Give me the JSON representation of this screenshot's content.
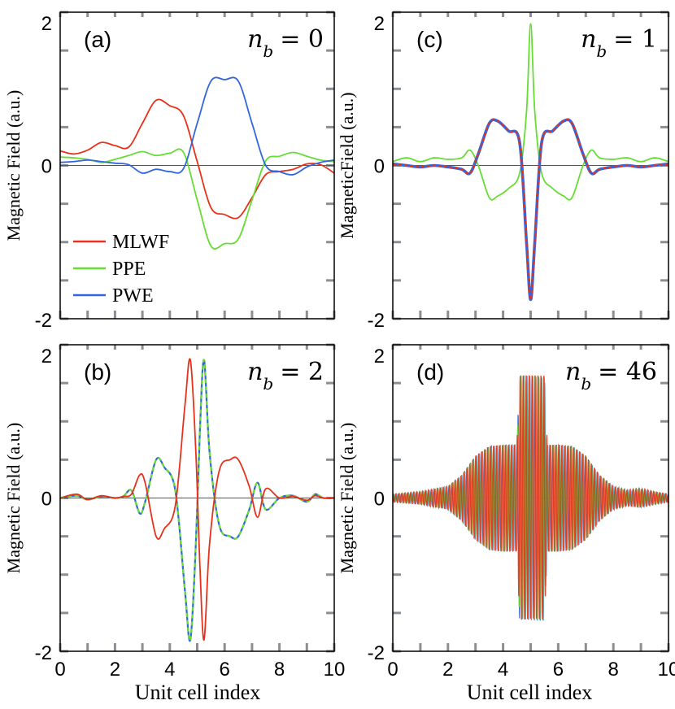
{
  "colors": {
    "mlwf": "#e8311a",
    "ppe": "#66dd33",
    "pwe": "#3366dd",
    "zero_line": "#555555",
    "tick": "#8a8f94",
    "frame": "#000000"
  },
  "legend": {
    "entries": [
      "MLWF",
      "PPE",
      "PWE"
    ],
    "placement": "left, middle of panel (a)"
  },
  "x_axis_label": "Unit cell index",
  "chart_data": [
    {
      "panel_label": "(a)",
      "nb_symbol": "n",
      "nb_sub": "b",
      "nb_eq": "= 0",
      "type": "line",
      "ylabel": "Magnetic Field (a.u.)",
      "xlim": [
        0,
        10
      ],
      "ylim": [
        -2,
        2
      ],
      "yticks": [
        "2",
        "0",
        "-2"
      ],
      "xticks": [],
      "series": [
        {
          "name": "MLWF",
          "color": "#e8311a",
          "x": [
            0,
            0.5,
            1,
            1.5,
            2,
            2.5,
            3,
            3.5,
            4,
            4.5,
            5,
            5.5,
            6,
            6.5,
            7,
            7.5,
            8,
            8.5,
            9,
            9.5,
            10
          ],
          "values": [
            0.19,
            0.15,
            0.2,
            0.3,
            0.26,
            0.24,
            0.55,
            0.85,
            0.78,
            0.65,
            0.05,
            -0.55,
            -0.64,
            -0.68,
            -0.42,
            -0.12,
            -0.08,
            -0.05,
            0.02,
            0.01,
            -0.1
          ]
        },
        {
          "name": "PPE",
          "color": "#66dd33",
          "x": [
            0,
            0.5,
            1,
            1.5,
            2,
            2.5,
            3,
            3.5,
            4,
            4.5,
            5,
            5.5,
            6,
            6.5,
            7,
            7.5,
            8,
            8.5,
            9,
            9.5,
            10
          ],
          "values": [
            0.11,
            0.1,
            0.08,
            0.04,
            0.08,
            0.13,
            0.18,
            0.13,
            0.16,
            0.17,
            -0.45,
            -1.05,
            -1.02,
            -0.96,
            -0.45,
            0.06,
            0.12,
            0.17,
            0.12,
            0.07,
            0.05
          ]
        },
        {
          "name": "PWE",
          "color": "#3366dd",
          "x": [
            0,
            0.5,
            1,
            1.5,
            2,
            2.5,
            3,
            3.5,
            4,
            4.5,
            5,
            5.5,
            6,
            6.5,
            7,
            7.5,
            8,
            8.5,
            9,
            9.5,
            10
          ],
          "values": [
            0.04,
            0.05,
            0.07,
            0.05,
            0.03,
            0.01,
            -0.1,
            -0.05,
            -0.08,
            -0.04,
            0.55,
            1.1,
            1.12,
            1.1,
            0.55,
            0.0,
            -0.08,
            -0.12,
            -0.02,
            0.04,
            0.07
          ]
        }
      ]
    },
    {
      "panel_label": "(c)",
      "nb_symbol": "n",
      "nb_sub": "b",
      "nb_eq": "= 1",
      "type": "line",
      "ylabel": "MagneticField (a.u.)",
      "xlim": [
        0,
        10
      ],
      "ylim": [
        -2,
        2
      ],
      "yticks": [
        "2",
        "0",
        "-2"
      ],
      "xticks": [],
      "series": [
        {
          "name": "PPE",
          "color": "#66dd33",
          "x": [
            0,
            0.5,
            1,
            1.5,
            2,
            2.5,
            2.8,
            3.1,
            3.5,
            3.8,
            4.2,
            4.6,
            4.85,
            5.0,
            5.15,
            5.4,
            5.8,
            6.2,
            6.5,
            6.9,
            7.2,
            7.5,
            8,
            8.5,
            9,
            9.5,
            10
          ],
          "values": [
            0.05,
            0.1,
            0.05,
            0.1,
            0.08,
            0.1,
            0.2,
            0.0,
            -0.42,
            -0.4,
            -0.3,
            -0.1,
            0.7,
            1.85,
            0.7,
            -0.1,
            -0.3,
            -0.4,
            -0.42,
            0.0,
            0.2,
            0.1,
            0.08,
            0.1,
            0.05,
            0.1,
            0.05
          ]
        },
        {
          "name": "PWE",
          "color": "#3366dd",
          "x": [
            0,
            0.5,
            1,
            1.5,
            2,
            2.5,
            2.8,
            3.1,
            3.5,
            3.8,
            4.2,
            4.6,
            4.85,
            5.0,
            5.15,
            5.4,
            5.8,
            6.2,
            6.5,
            6.9,
            7.2,
            7.5,
            8,
            8.5,
            9,
            9.5,
            10
          ],
          "values": [
            0.02,
            0.0,
            -0.02,
            0.0,
            -0.02,
            -0.05,
            -0.1,
            0.15,
            0.55,
            0.58,
            0.45,
            0.3,
            -1.0,
            -1.75,
            -1.0,
            0.3,
            0.45,
            0.58,
            0.55,
            0.15,
            -0.1,
            -0.05,
            -0.02,
            0.0,
            -0.02,
            0.0,
            0.02
          ]
        },
        {
          "name": "MLWF",
          "color": "#e8311a",
          "x": [
            0,
            0.5,
            1,
            1.5,
            2,
            2.5,
            2.8,
            3.1,
            3.5,
            3.8,
            4.2,
            4.6,
            4.85,
            5.0,
            5.15,
            5.4,
            5.8,
            6.2,
            6.5,
            6.9,
            7.2,
            7.5,
            8,
            8.5,
            9,
            9.5,
            10
          ],
          "values": [
            0.02,
            0.0,
            -0.02,
            0.0,
            -0.02,
            -0.05,
            -0.1,
            0.15,
            0.55,
            0.58,
            0.45,
            0.3,
            -1.0,
            -1.75,
            -1.0,
            0.3,
            0.45,
            0.58,
            0.55,
            0.15,
            -0.1,
            -0.05,
            -0.02,
            0.0,
            -0.02,
            0.0,
            0.02
          ]
        }
      ]
    },
    {
      "panel_label": "(b)",
      "nb_symbol": "n",
      "nb_sub": "b",
      "nb_eq": "= 2",
      "type": "line",
      "ylabel": "Magnetic Field (a.u.)",
      "xlim": [
        0,
        10
      ],
      "ylim": [
        -2,
        2
      ],
      "yticks": [
        "2",
        "0",
        "-2"
      ],
      "xticks": [
        "0",
        "2",
        "4",
        "6",
        "8",
        "10"
      ],
      "series": [
        {
          "name": "PWE",
          "color": "#3366dd",
          "x": [
            0,
            0.6,
            1.0,
            1.5,
            2.0,
            2.3,
            2.6,
            2.9,
            3.1,
            3.5,
            3.8,
            4.2,
            4.55,
            4.75,
            4.95,
            5.1,
            5.25,
            5.45,
            5.8,
            6.2,
            6.5,
            6.9,
            7.2,
            7.5,
            8.0,
            8.5,
            9.0,
            9.3,
            9.6,
            10
          ],
          "values": [
            0,
            0.03,
            -0.02,
            0.02,
            0,
            0.02,
            0.1,
            -0.2,
            -0.05,
            0.5,
            0.4,
            0.1,
            -1.2,
            -1.85,
            -0.6,
            0.9,
            1.8,
            0.6,
            -0.35,
            -0.5,
            -0.5,
            -0.15,
            0.2,
            -0.15,
            0,
            0.03,
            -0.05,
            0.05,
            0,
            0
          ]
        },
        {
          "name": "PPE",
          "color": "#66dd33",
          "x": [
            0,
            0.6,
            1.0,
            1.5,
            2.0,
            2.3,
            2.6,
            2.9,
            3.1,
            3.5,
            3.8,
            4.2,
            4.55,
            4.75,
            4.95,
            5.1,
            5.25,
            5.45,
            5.8,
            6.2,
            6.5,
            6.9,
            7.2,
            7.5,
            8.0,
            8.5,
            9.0,
            9.3,
            9.6,
            10
          ],
          "values": [
            0,
            0.03,
            -0.02,
            0.02,
            0,
            0.02,
            0.1,
            -0.2,
            -0.05,
            0.5,
            0.4,
            0.1,
            -1.2,
            -1.85,
            -0.6,
            0.9,
            1.8,
            0.6,
            -0.35,
            -0.5,
            -0.5,
            -0.15,
            0.2,
            -0.15,
            0,
            0.03,
            -0.05,
            0.05,
            0,
            0
          ]
        },
        {
          "name": "MLWF",
          "color": "#e8311a",
          "x": [
            0,
            0.6,
            1.0,
            1.5,
            2.0,
            2.3,
            2.6,
            2.9,
            3.1,
            3.5,
            3.8,
            4.2,
            4.55,
            4.75,
            4.95,
            5.1,
            5.25,
            5.45,
            5.8,
            6.2,
            6.5,
            6.9,
            7.2,
            7.5,
            8.0,
            8.5,
            9.0,
            9.3,
            9.6,
            10
          ],
          "values": [
            0,
            0.05,
            -0.02,
            0.03,
            0,
            0.02,
            0.05,
            0.3,
            0.2,
            -0.5,
            -0.4,
            -0.1,
            1.2,
            1.8,
            0.6,
            -0.9,
            -1.85,
            -0.6,
            0.35,
            0.5,
            0.5,
            0.15,
            -0.25,
            0.12,
            0,
            0.02,
            -0.03,
            0.03,
            0,
            0
          ]
        }
      ]
    },
    {
      "panel_label": "(d)",
      "nb_symbol": "n",
      "nb_sub": "b",
      "nb_eq": "= 46",
      "type": "line",
      "ylabel": "Magnetic Field (a.u.)",
      "xlim": [
        0,
        10
      ],
      "ylim": [
        -2,
        2
      ],
      "yticks": [
        "2",
        "0",
        "-2"
      ],
      "xticks": [
        "0",
        "2",
        "4",
        "6",
        "8",
        "10"
      ],
      "envelope": {
        "x": [
          0,
          1,
          2,
          2.5,
          3,
          3.5,
          4,
          4.5,
          4.6,
          5.5,
          5.6,
          6,
          6.5,
          7,
          7.5,
          8,
          8.5,
          9,
          9.5,
          10
        ],
        "values": [
          0.05,
          0.08,
          0.15,
          0.3,
          0.55,
          0.68,
          0.7,
          0.7,
          1.6,
          1.6,
          0.7,
          0.7,
          0.68,
          0.55,
          0.3,
          0.15,
          0.1,
          0.12,
          0.08,
          0.05
        ]
      },
      "series": [
        {
          "name": "PWE",
          "color": "#3366dd"
        },
        {
          "name": "PPE",
          "color": "#66dd33"
        },
        {
          "name": "MLWF",
          "color": "#e8311a"
        }
      ]
    }
  ]
}
